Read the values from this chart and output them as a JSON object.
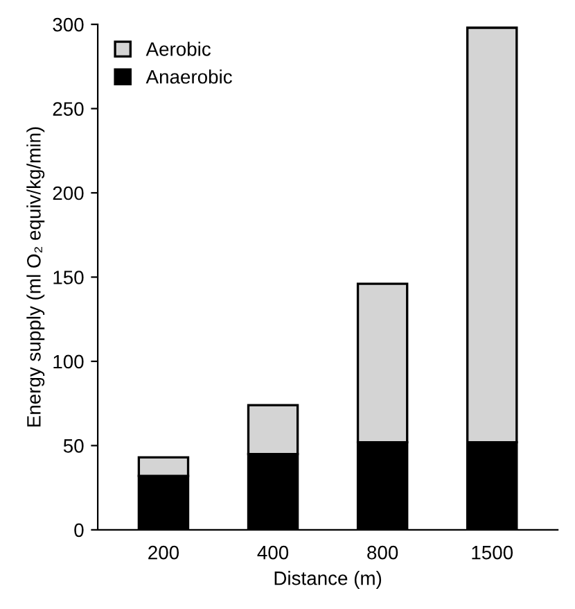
{
  "chart_data": {
    "type": "bar",
    "stacked": true,
    "xlabel": "Distance (m)",
    "ylabel": "Energy supply (ml O₂ equiv/kg/min)",
    "categories": [
      "200",
      "400",
      "800",
      "1500"
    ],
    "series": [
      {
        "name": "Anaerobic",
        "color": "#000000",
        "values": [
          32,
          45,
          52,
          52
        ]
      },
      {
        "name": "Aerobic",
        "color": "#d4d4d4",
        "values": [
          11,
          29,
          94,
          246
        ]
      }
    ],
    "ylim": [
      0,
      300
    ],
    "yticks": [
      0,
      50,
      100,
      150,
      200,
      250,
      300
    ],
    "legend": "top left",
    "grid": false
  }
}
